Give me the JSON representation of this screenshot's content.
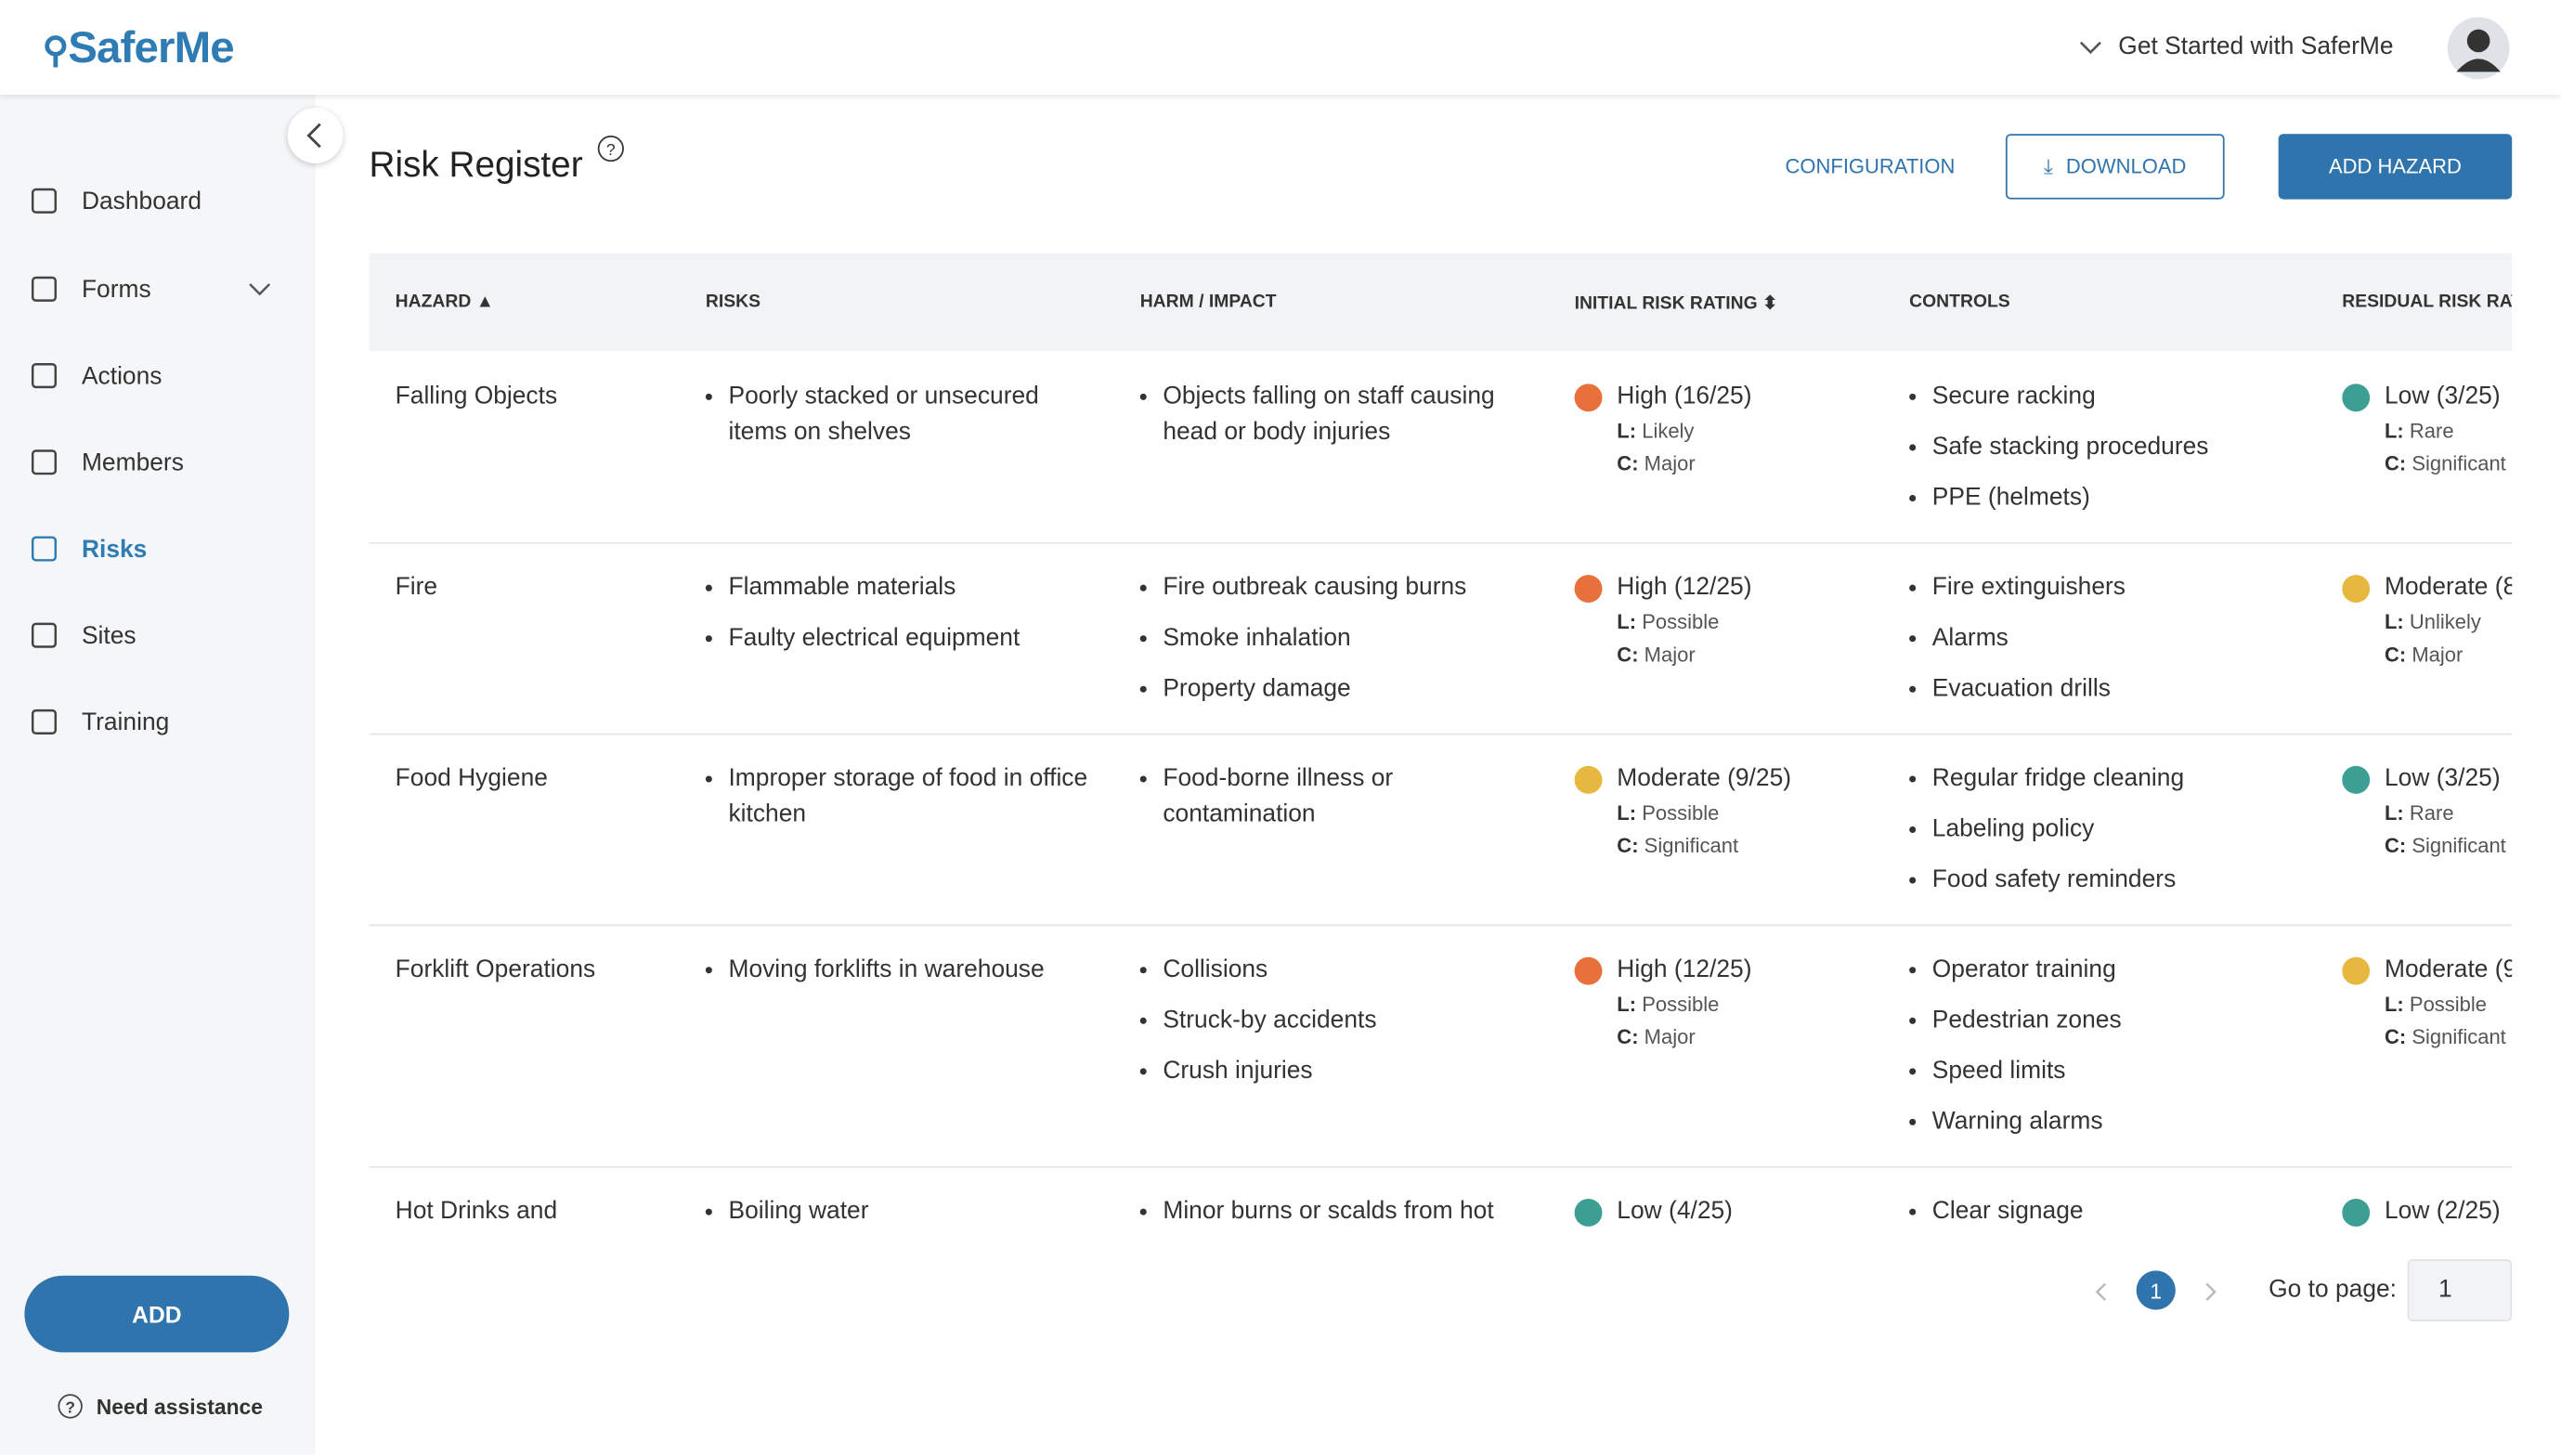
{
  "header": {
    "logo": "SaferMe",
    "get_started": "Get Started with SaferMe"
  },
  "sidebar": {
    "nav": [
      "Dashboard",
      "Forms",
      "Actions",
      "Members",
      "Risks",
      "Sites",
      "Training"
    ],
    "active": 4,
    "add_button": "ADD",
    "assistance": "Need assistance"
  },
  "page": {
    "title": "Risk Register",
    "configuration": "CONFIGURATION",
    "download": "DOWNLOAD",
    "add_hazard": "ADD HAZARD"
  },
  "table": {
    "columns": [
      "HAZARD ▲",
      "RISKS",
      "HARM / IMPACT",
      "INITIAL RISK RATING ⬍",
      "CONTROLS",
      "RESIDUAL RISK RAT"
    ],
    "likelihood_label": "L:",
    "consequence_label": "C:",
    "rows": [
      {
        "hazard": "Falling Objects",
        "risks": [
          "Poorly stacked or unsecured items on shelves"
        ],
        "harm": [
          "Objects falling on staff causing head or body injuries"
        ],
        "initial": {
          "rating": "High (16/25)",
          "color": "#e8703a",
          "likelihood": "Likely",
          "consequence": "Major"
        },
        "controls": [
          "Secure racking",
          "Safe stacking procedures",
          "PPE (helmets)"
        ],
        "residual": {
          "rating": "Low (3/25)",
          "color": "#3d9e94",
          "likelihood": "Rare",
          "consequence": "Significant"
        }
      },
      {
        "hazard": "Fire",
        "risks": [
          "Flammable materials",
          "Faulty electrical equipment"
        ],
        "harm": [
          "Fire outbreak causing burns",
          "Smoke inhalation",
          "Property damage"
        ],
        "initial": {
          "rating": "High (12/25)",
          "color": "#e8703a",
          "likelihood": "Possible",
          "consequence": "Major"
        },
        "controls": [
          "Fire extinguishers",
          "Alarms",
          "Evacuation drills"
        ],
        "residual": {
          "rating": "Moderate (8",
          "color": "#e6b83f",
          "likelihood": "Unlikely",
          "consequence": "Major"
        }
      },
      {
        "hazard": "Food Hygiene",
        "risks": [
          "Improper storage of food in office kitchen"
        ],
        "harm": [
          "Food-borne illness or contamination"
        ],
        "initial": {
          "rating": "Moderate (9/25)",
          "color": "#e6b83f",
          "likelihood": "Possible",
          "consequence": "Significant"
        },
        "controls": [
          "Regular fridge cleaning",
          "Labeling policy",
          "Food safety reminders"
        ],
        "residual": {
          "rating": "Low (3/25)",
          "color": "#3d9e94",
          "likelihood": "Rare",
          "consequence": "Significant"
        }
      },
      {
        "hazard": "Forklift Operations",
        "risks": [
          "Moving forklifts in warehouse"
        ],
        "harm": [
          "Collisions",
          "Struck-by accidents",
          "Crush injuries"
        ],
        "initial": {
          "rating": "High (12/25)",
          "color": "#e8703a",
          "likelihood": "Possible",
          "consequence": "Major"
        },
        "controls": [
          "Operator training",
          "Pedestrian zones",
          "Speed limits",
          "Warning alarms"
        ],
        "residual": {
          "rating": "Moderate (9",
          "color": "#e6b83f",
          "likelihood": "Possible",
          "consequence": "Significant"
        }
      },
      {
        "hazard": "Hot Drinks and",
        "risks": [
          "Boiling water"
        ],
        "harm": [
          "Minor burns or scalds from hot"
        ],
        "initial": {
          "rating": "Low (4/25)",
          "color": "#3d9e94"
        },
        "controls": [
          "Clear signage"
        ],
        "residual": {
          "rating": "Low (2/25)",
          "color": "#3d9e94"
        }
      }
    ]
  },
  "pagination": {
    "current": "1",
    "go_to_page": "Go to page:",
    "input": "1"
  }
}
